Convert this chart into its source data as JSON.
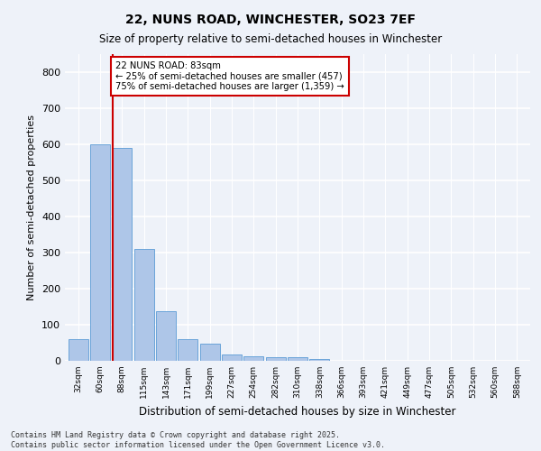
{
  "title": "22, NUNS ROAD, WINCHESTER, SO23 7EF",
  "subtitle": "Size of property relative to semi-detached houses in Winchester",
  "xlabel": "Distribution of semi-detached houses by size in Winchester",
  "ylabel": "Number of semi-detached properties",
  "property_label": "22 NUNS ROAD: 83sqm",
  "pct_smaller": 25,
  "pct_larger": 75,
  "count_smaller": 457,
  "count_larger": 1359,
  "categories": [
    "32sqm",
    "60sqm",
    "88sqm",
    "115sqm",
    "143sqm",
    "171sqm",
    "199sqm",
    "227sqm",
    "254sqm",
    "282sqm",
    "310sqm",
    "338sqm",
    "366sqm",
    "393sqm",
    "421sqm",
    "449sqm",
    "477sqm",
    "505sqm",
    "532sqm",
    "560sqm",
    "588sqm"
  ],
  "values": [
    60,
    600,
    590,
    310,
    138,
    60,
    47,
    18,
    13,
    10,
    10,
    5,
    0,
    0,
    0,
    0,
    0,
    0,
    0,
    0,
    0
  ],
  "bar_color": "#aec6e8",
  "bar_edge_color": "#5b9bd5",
  "red_line_color": "#cc0000",
  "annotation_box_color": "#cc0000",
  "background_color": "#eef2f9",
  "grid_color": "#ffffff",
  "ylim": [
    0,
    850
  ],
  "yticks": [
    0,
    100,
    200,
    300,
    400,
    500,
    600,
    700,
    800
  ],
  "footnote1": "Contains HM Land Registry data © Crown copyright and database right 2025.",
  "footnote2": "Contains public sector information licensed under the Open Government Licence v3.0."
}
